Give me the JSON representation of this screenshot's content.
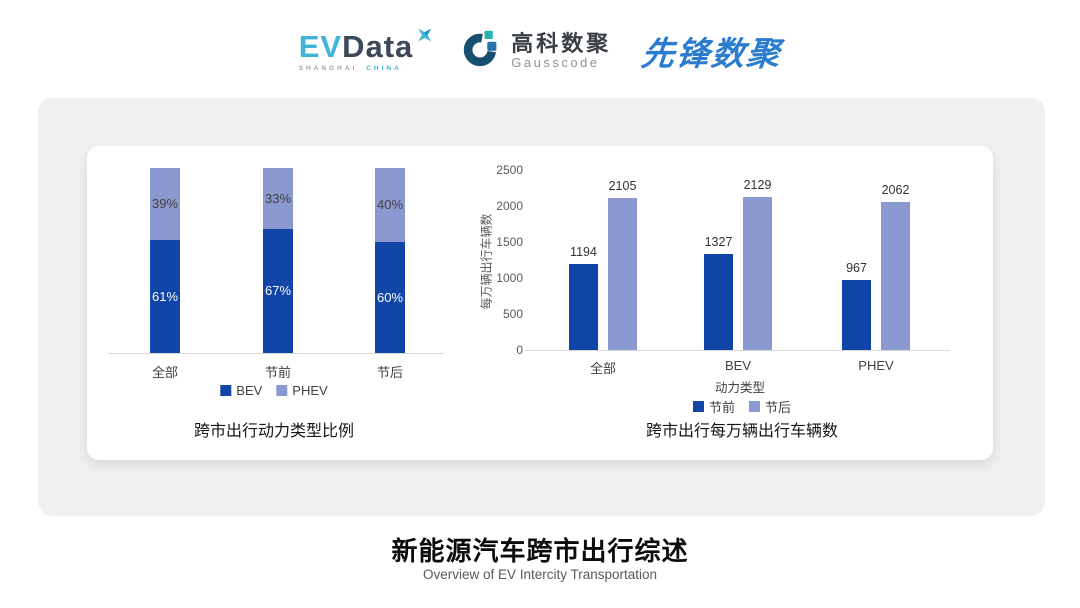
{
  "header": {
    "evdata": {
      "ev": "EV",
      "data": "Data",
      "sub_left": "SHANGHAI",
      "sub_right": "CHINA",
      "ev_color": "#3eb4d8",
      "data_color": "#3d4858"
    },
    "gausscode": {
      "cn": "高科数聚",
      "en": "Gausscode",
      "ring_color": "#17506f",
      "teal_color": "#27b2b2",
      "blue_color": "#2a72ae"
    },
    "xianfeng": {
      "text": "先锋数聚",
      "color": "#2b7ccf"
    }
  },
  "colors": {
    "primary_dark_blue": "#1245a8",
    "primary_light_blue": "#8b99d1",
    "card_bg": "#f0f0f1",
    "axis_line": "#d9d9d9",
    "tick_text": "#595959",
    "label_text": "#404040",
    "value_text": "#333333"
  },
  "chart_data": [
    {
      "type": "bar",
      "variant": "stacked-percent",
      "title": "跨市出行动力类型比例",
      "xlabel": "",
      "ylabel": "",
      "categories": [
        "全部",
        "节前",
        "节后"
      ],
      "series": [
        {
          "key": "bev",
          "name": "BEV",
          "color": "#1245a8",
          "values": [
            61,
            67,
            60
          ],
          "label_suffix": "%",
          "label_color": "#ffffff"
        },
        {
          "key": "phev",
          "name": "PHEV",
          "color": "#8b99d1",
          "values": [
            39,
            33,
            40
          ],
          "label_suffix": "%",
          "label_color": "#404040"
        }
      ],
      "ylim": [
        0,
        100
      ],
      "grid": false,
      "legend_position": "bottom"
    },
    {
      "type": "bar",
      "variant": "grouped",
      "title": "跨市出行每万辆出行车辆数",
      "xlabel": "动力类型",
      "ylabel": "每万辆出行车辆数",
      "categories": [
        "全部",
        "BEV",
        "PHEV"
      ],
      "series": [
        {
          "key": "pre-holiday",
          "name": "节前",
          "color": "#1245a8",
          "values": [
            1194,
            1327,
            967
          ]
        },
        {
          "key": "post-holiday",
          "name": "节后",
          "color": "#8b99d1",
          "values": [
            2105,
            2129,
            2062
          ]
        }
      ],
      "ylim": [
        0,
        2500
      ],
      "yticks": [
        0,
        500,
        1000,
        1500,
        2000,
        2500
      ],
      "grid": false,
      "legend_position": "bottom"
    }
  ],
  "footer": {
    "title": "新能源汽车跨市出行综述",
    "subtitle": "Overview of EV Intercity Transportation"
  }
}
